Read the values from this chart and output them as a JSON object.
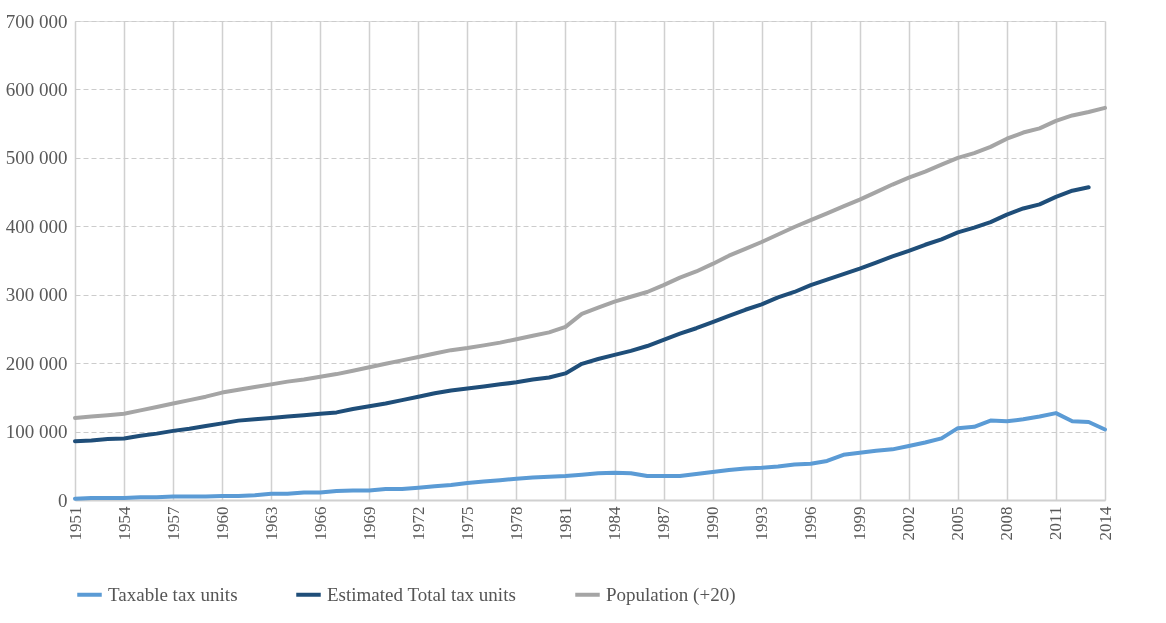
{
  "chart_data": {
    "type": "line",
    "x": [
      1951,
      1952,
      1953,
      1954,
      1955,
      1956,
      1957,
      1958,
      1959,
      1960,
      1961,
      1962,
      1963,
      1964,
      1965,
      1966,
      1967,
      1968,
      1969,
      1970,
      1971,
      1972,
      1973,
      1974,
      1975,
      1976,
      1977,
      1978,
      1979,
      1980,
      1981,
      1982,
      1983,
      1984,
      1985,
      1986,
      1987,
      1988,
      1989,
      1990,
      1991,
      1992,
      1993,
      1994,
      1995,
      1996,
      1997,
      1998,
      1999,
      2000,
      2001,
      2002,
      2003,
      2004,
      2005,
      2006,
      2007,
      2008,
      2009,
      2010,
      2011,
      2012,
      2013,
      2014
    ],
    "series": [
      {
        "name": "Taxable tax units",
        "color": "#5b9bd5",
        "values": [
          2000,
          3000,
          3000,
          3000,
          4000,
          4000,
          5000,
          5000,
          5000,
          6000,
          6000,
          7000,
          9000,
          9000,
          11000,
          11000,
          13000,
          14000,
          14000,
          16000,
          16000,
          18000,
          20000,
          22000,
          25000,
          27000,
          29000,
          31000,
          33000,
          34000,
          35000,
          37000,
          39000,
          40000,
          39000,
          35000,
          35000,
          35000,
          38000,
          41000,
          44000,
          46000,
          47000,
          49000,
          52000,
          53000,
          57000,
          66000,
          69000,
          72000,
          74000,
          79000,
          84000,
          90000,
          105000,
          107000,
          116000,
          115000,
          118000,
          122000,
          127000,
          115000,
          114000,
          103000
        ]
      },
      {
        "name": "Estimated Total tax units",
        "color": "#1f4e79",
        "values": [
          86000,
          87000,
          89000,
          90000,
          94000,
          97000,
          101000,
          104000,
          108000,
          112000,
          116000,
          118000,
          120000,
          122000,
          124000,
          126000,
          128000,
          133000,
          137000,
          141000,
          146000,
          151000,
          156000,
          160000,
          163000,
          166000,
          169000,
          172000,
          176000,
          179000,
          185000,
          199000,
          206000,
          212000,
          218000,
          225000,
          234000,
          243000,
          251000,
          260000,
          269000,
          278000,
          286000,
          296000,
          304000,
          314000,
          322000,
          330000,
          338000,
          347000,
          356000,
          364000,
          373000,
          381000,
          391000,
          398000,
          406000,
          417000,
          426000,
          432000,
          443000,
          452000,
          457000,
          null
        ]
      },
      {
        "name": "Population (+20)",
        "color": "#a5a5a5",
        "values": [
          120000,
          122000,
          124000,
          126000,
          131000,
          136000,
          141000,
          146000,
          151000,
          157000,
          161000,
          165000,
          169000,
          173000,
          176000,
          180000,
          184000,
          189000,
          194000,
          199000,
          204000,
          209000,
          214000,
          219000,
          222000,
          226000,
          230000,
          235000,
          240000,
          245000,
          253000,
          272000,
          281000,
          290000,
          297000,
          304000,
          314000,
          325000,
          334000,
          345000,
          357000,
          367000,
          377000,
          388000,
          399000,
          409000,
          419000,
          429000,
          439000,
          450000,
          461000,
          471000,
          480000,
          490000,
          500000,
          507000,
          516000,
          528000,
          537000,
          543000,
          554000,
          562000,
          567000,
          573000
        ]
      }
    ],
    "xlim": [
      1951,
      2014
    ],
    "xticks": [
      1951,
      1954,
      1957,
      1960,
      1963,
      1966,
      1969,
      1972,
      1975,
      1978,
      1981,
      1984,
      1987,
      1990,
      1993,
      1996,
      1999,
      2002,
      2005,
      2008,
      2011,
      2014
    ],
    "ylim": [
      0,
      700000
    ],
    "yticks": [
      0,
      {
        "value": 100000,
        "label": "100 000"
      },
      {
        "value": 200000,
        "label": "200 000"
      },
      {
        "value": 300000,
        "label": "300 000"
      },
      {
        "value": 400000,
        "label": "400 000"
      },
      {
        "value": 500000,
        "label": "500 000"
      },
      {
        "value": 600000,
        "label": "600 000"
      },
      {
        "value": 700000,
        "label": "700 000"
      }
    ],
    "grid": true,
    "legend": "bottom",
    "marker": "none",
    "line_style": "solid"
  }
}
